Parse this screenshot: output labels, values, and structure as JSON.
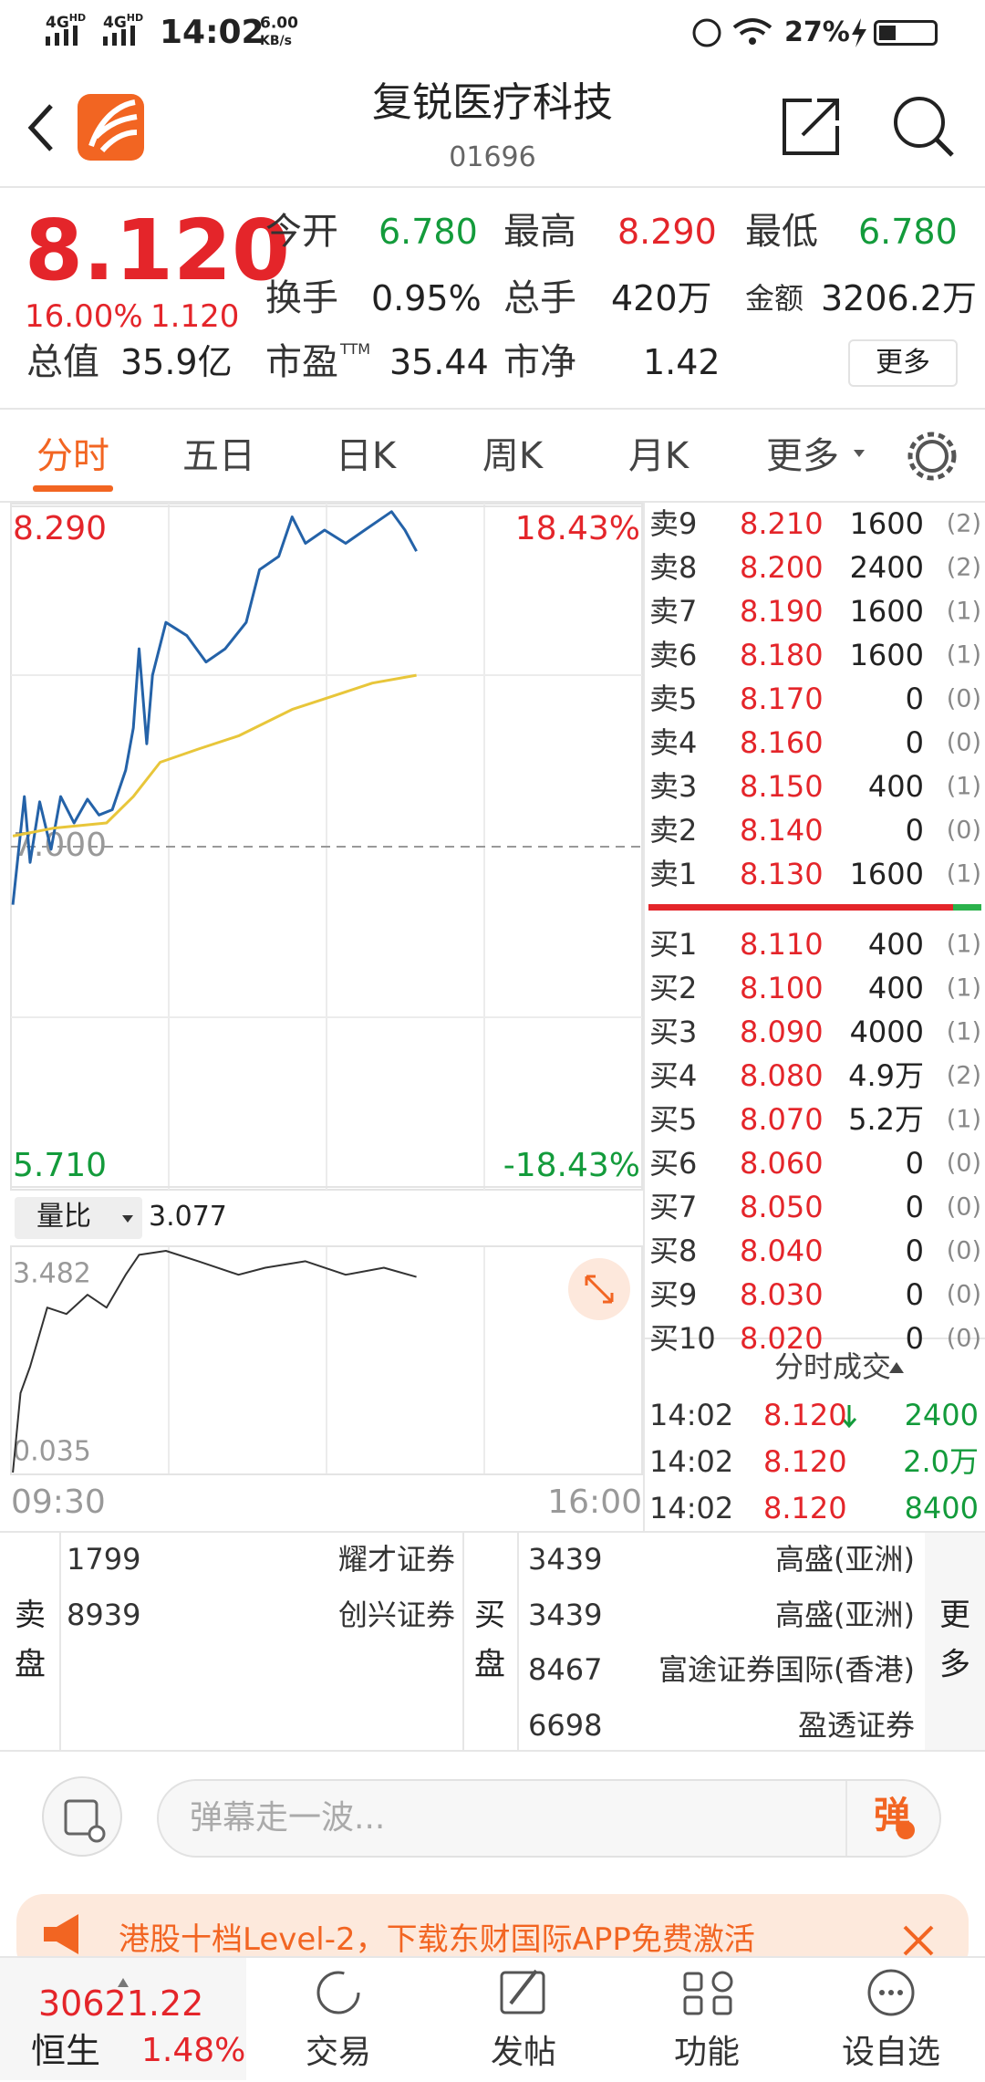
{
  "status_bar": {
    "networks": [
      {
        "type": "4G",
        "hd": "HD"
      },
      {
        "type": "4G",
        "hd": "HD"
      }
    ],
    "time": "14:02",
    "net_speed": "6.00",
    "net_unit": "KB/s",
    "battery": "27%"
  },
  "header": {
    "title": "复锐医疗科技",
    "code": "01696"
  },
  "quote": {
    "price": "8.120",
    "change_pct": "16.00%",
    "change": "1.120",
    "stats": [
      {
        "label": "今开",
        "value": "6.780",
        "tone": "down"
      },
      {
        "label": "最高",
        "value": "8.290",
        "tone": "up"
      },
      {
        "label": "最低",
        "value": "6.780",
        "tone": "down"
      },
      {
        "label": "换手",
        "value": "0.95%",
        "tone": "flat"
      },
      {
        "label": "总手",
        "value": "420万",
        "tone": "flat"
      },
      {
        "label": "金额",
        "value": "3206.2万",
        "tone": "flat"
      },
      {
        "label": "总值",
        "value": "35.9亿",
        "tone": "flat"
      },
      {
        "label": "市盈",
        "sup": "TTM",
        "value": "35.44",
        "tone": "flat"
      },
      {
        "label": "市净",
        "value": "1.42",
        "tone": "flat"
      }
    ],
    "more": "更多"
  },
  "tabs": [
    "分时",
    "五日",
    "日K",
    "周K",
    "月K",
    "更多"
  ],
  "chart_data": [
    {
      "type": "line",
      "xlim": [
        0,
        330
      ],
      "xticks": [
        {
          "value": 0,
          "label": "09:30"
        },
        {
          "value": 330,
          "label": "16:00"
        }
      ],
      "ylim": [
        5.71,
        8.29
      ],
      "yticks": [
        {
          "value": 8.29,
          "label": "8.290"
        },
        {
          "value": 7.0,
          "label": "7.000"
        },
        {
          "value": 5.71,
          "label": "5.710"
        }
      ],
      "y2lim": [
        -18.43,
        18.43
      ],
      "y2ticks": [
        {
          "value": 18.43,
          "label": "18.43%"
        },
        {
          "value": -18.43,
          "label": "-18.43%"
        }
      ],
      "grid": true,
      "series": [
        {
          "color": "#2462a8",
          "x": [
            1,
            7,
            10,
            15,
            21,
            26,
            33,
            40,
            46,
            53,
            60,
            64,
            67,
            71,
            74,
            81,
            92,
            102,
            112,
            123,
            130,
            140,
            147,
            154,
            164,
            175,
            185,
            199,
            206,
            212
          ],
          "values": [
            6.78,
            7.19,
            6.94,
            7.17,
            6.99,
            7.19,
            7.09,
            7.18,
            7.12,
            7.14,
            7.29,
            7.45,
            7.75,
            7.39,
            7.65,
            7.85,
            7.8,
            7.7,
            7.75,
            7.85,
            8.05,
            8.1,
            8.25,
            8.15,
            8.2,
            8.15,
            8.2,
            8.27,
            8.2,
            8.12
          ]
        },
        {
          "color": "#e8c63a",
          "x": [
            1,
            22,
            50,
            64,
            78,
            98,
            119,
            133,
            147,
            168,
            189,
            212
          ],
          "values": [
            7.04,
            7.07,
            7.09,
            7.19,
            7.32,
            7.37,
            7.42,
            7.47,
            7.52,
            7.57,
            7.62,
            7.65
          ]
        }
      ]
    },
    {
      "type": "line",
      "title": "量比",
      "current_value": 3.077,
      "xlim": [
        0,
        330
      ],
      "ylim": [
        0.035,
        3.482
      ],
      "yticks": [
        {
          "value": 3.482,
          "label": "3.482"
        },
        {
          "value": 0.035,
          "label": "0.035"
        }
      ],
      "series": [
        {
          "color": "#333333",
          "x": [
            1,
            5,
            10,
            19,
            29,
            40,
            50,
            60,
            67,
            81,
            98,
            119,
            133,
            154,
            175,
            195,
            212
          ],
          "values": [
            0.035,
            1.27,
            1.68,
            2.6,
            2.5,
            2.8,
            2.6,
            3.11,
            3.42,
            3.482,
            3.32,
            3.11,
            3.22,
            3.32,
            3.11,
            3.22,
            3.077
          ]
        }
      ]
    }
  ],
  "order_book": {
    "asks": [
      {
        "label": "卖9",
        "price": "8.210",
        "volume": "1600",
        "count": "(2)"
      },
      {
        "label": "卖8",
        "price": "8.200",
        "volume": "2400",
        "count": "(2)"
      },
      {
        "label": "卖7",
        "price": "8.190",
        "volume": "1600",
        "count": "(1)"
      },
      {
        "label": "卖6",
        "price": "8.180",
        "volume": "1600",
        "count": "(1)"
      },
      {
        "label": "卖5",
        "price": "8.170",
        "volume": "0",
        "count": "(0)"
      },
      {
        "label": "卖4",
        "price": "8.160",
        "volume": "0",
        "count": "(0)"
      },
      {
        "label": "卖3",
        "price": "8.150",
        "volume": "400",
        "count": "(1)"
      },
      {
        "label": "卖2",
        "price": "8.140",
        "volume": "0",
        "count": "(0)"
      },
      {
        "label": "卖1",
        "price": "8.130",
        "volume": "1600",
        "count": "(1)"
      }
    ],
    "bids": [
      {
        "label": "买1",
        "price": "8.110",
        "volume": "400",
        "count": "(1)"
      },
      {
        "label": "买2",
        "price": "8.100",
        "volume": "400",
        "count": "(1)"
      },
      {
        "label": "买3",
        "price": "8.090",
        "volume": "4000",
        "count": "(1)"
      },
      {
        "label": "买4",
        "price": "8.080",
        "volume": "4.9万",
        "count": "(2)"
      },
      {
        "label": "买5",
        "price": "8.070",
        "volume": "5.2万",
        "count": "(1)"
      },
      {
        "label": "买6",
        "price": "8.060",
        "volume": "0",
        "count": "(0)"
      },
      {
        "label": "买7",
        "price": "8.050",
        "volume": "0",
        "count": "(0)"
      },
      {
        "label": "买8",
        "price": "8.040",
        "volume": "0",
        "count": "(0)"
      },
      {
        "label": "买9",
        "price": "8.030",
        "volume": "0",
        "count": "(0)"
      },
      {
        "label": "买10",
        "price": "8.020",
        "volume": "0",
        "count": "(0)"
      }
    ]
  },
  "trades": {
    "title": "分时成交",
    "rows": [
      {
        "time": "14:02",
        "price": "8.120",
        "volume": "2400"
      },
      {
        "time": "14:02",
        "price": "8.120",
        "volume": "2.0万"
      },
      {
        "time": "14:02",
        "price": "8.120",
        "volume": "8400"
      }
    ]
  },
  "brokers": {
    "sell_label": "卖盘",
    "sell": [
      {
        "id": "1799",
        "name": "耀才证券"
      },
      {
        "id": "8939",
        "name": "创兴证券"
      }
    ],
    "buy_label": "买盘",
    "buy": [
      {
        "id": "3439",
        "name": "高盛(亚洲)"
      },
      {
        "id": "3439",
        "name": "高盛(亚洲)"
      },
      {
        "id": "8467",
        "name": "富途证券国际(香港)"
      },
      {
        "id": "6698",
        "name": "盈透证券"
      }
    ],
    "more": "更多"
  },
  "comment": {
    "placeholder": "弹幕走一波...",
    "danmu": "弹"
  },
  "banner": {
    "text": "港股十档Level-2，下载东财国际APP免费激活"
  },
  "nav": {
    "index_value": "30621.22",
    "index_name": "恒生",
    "index_change": "1.48%",
    "items": [
      "交易",
      "发帖",
      "功能",
      "设自选"
    ]
  }
}
